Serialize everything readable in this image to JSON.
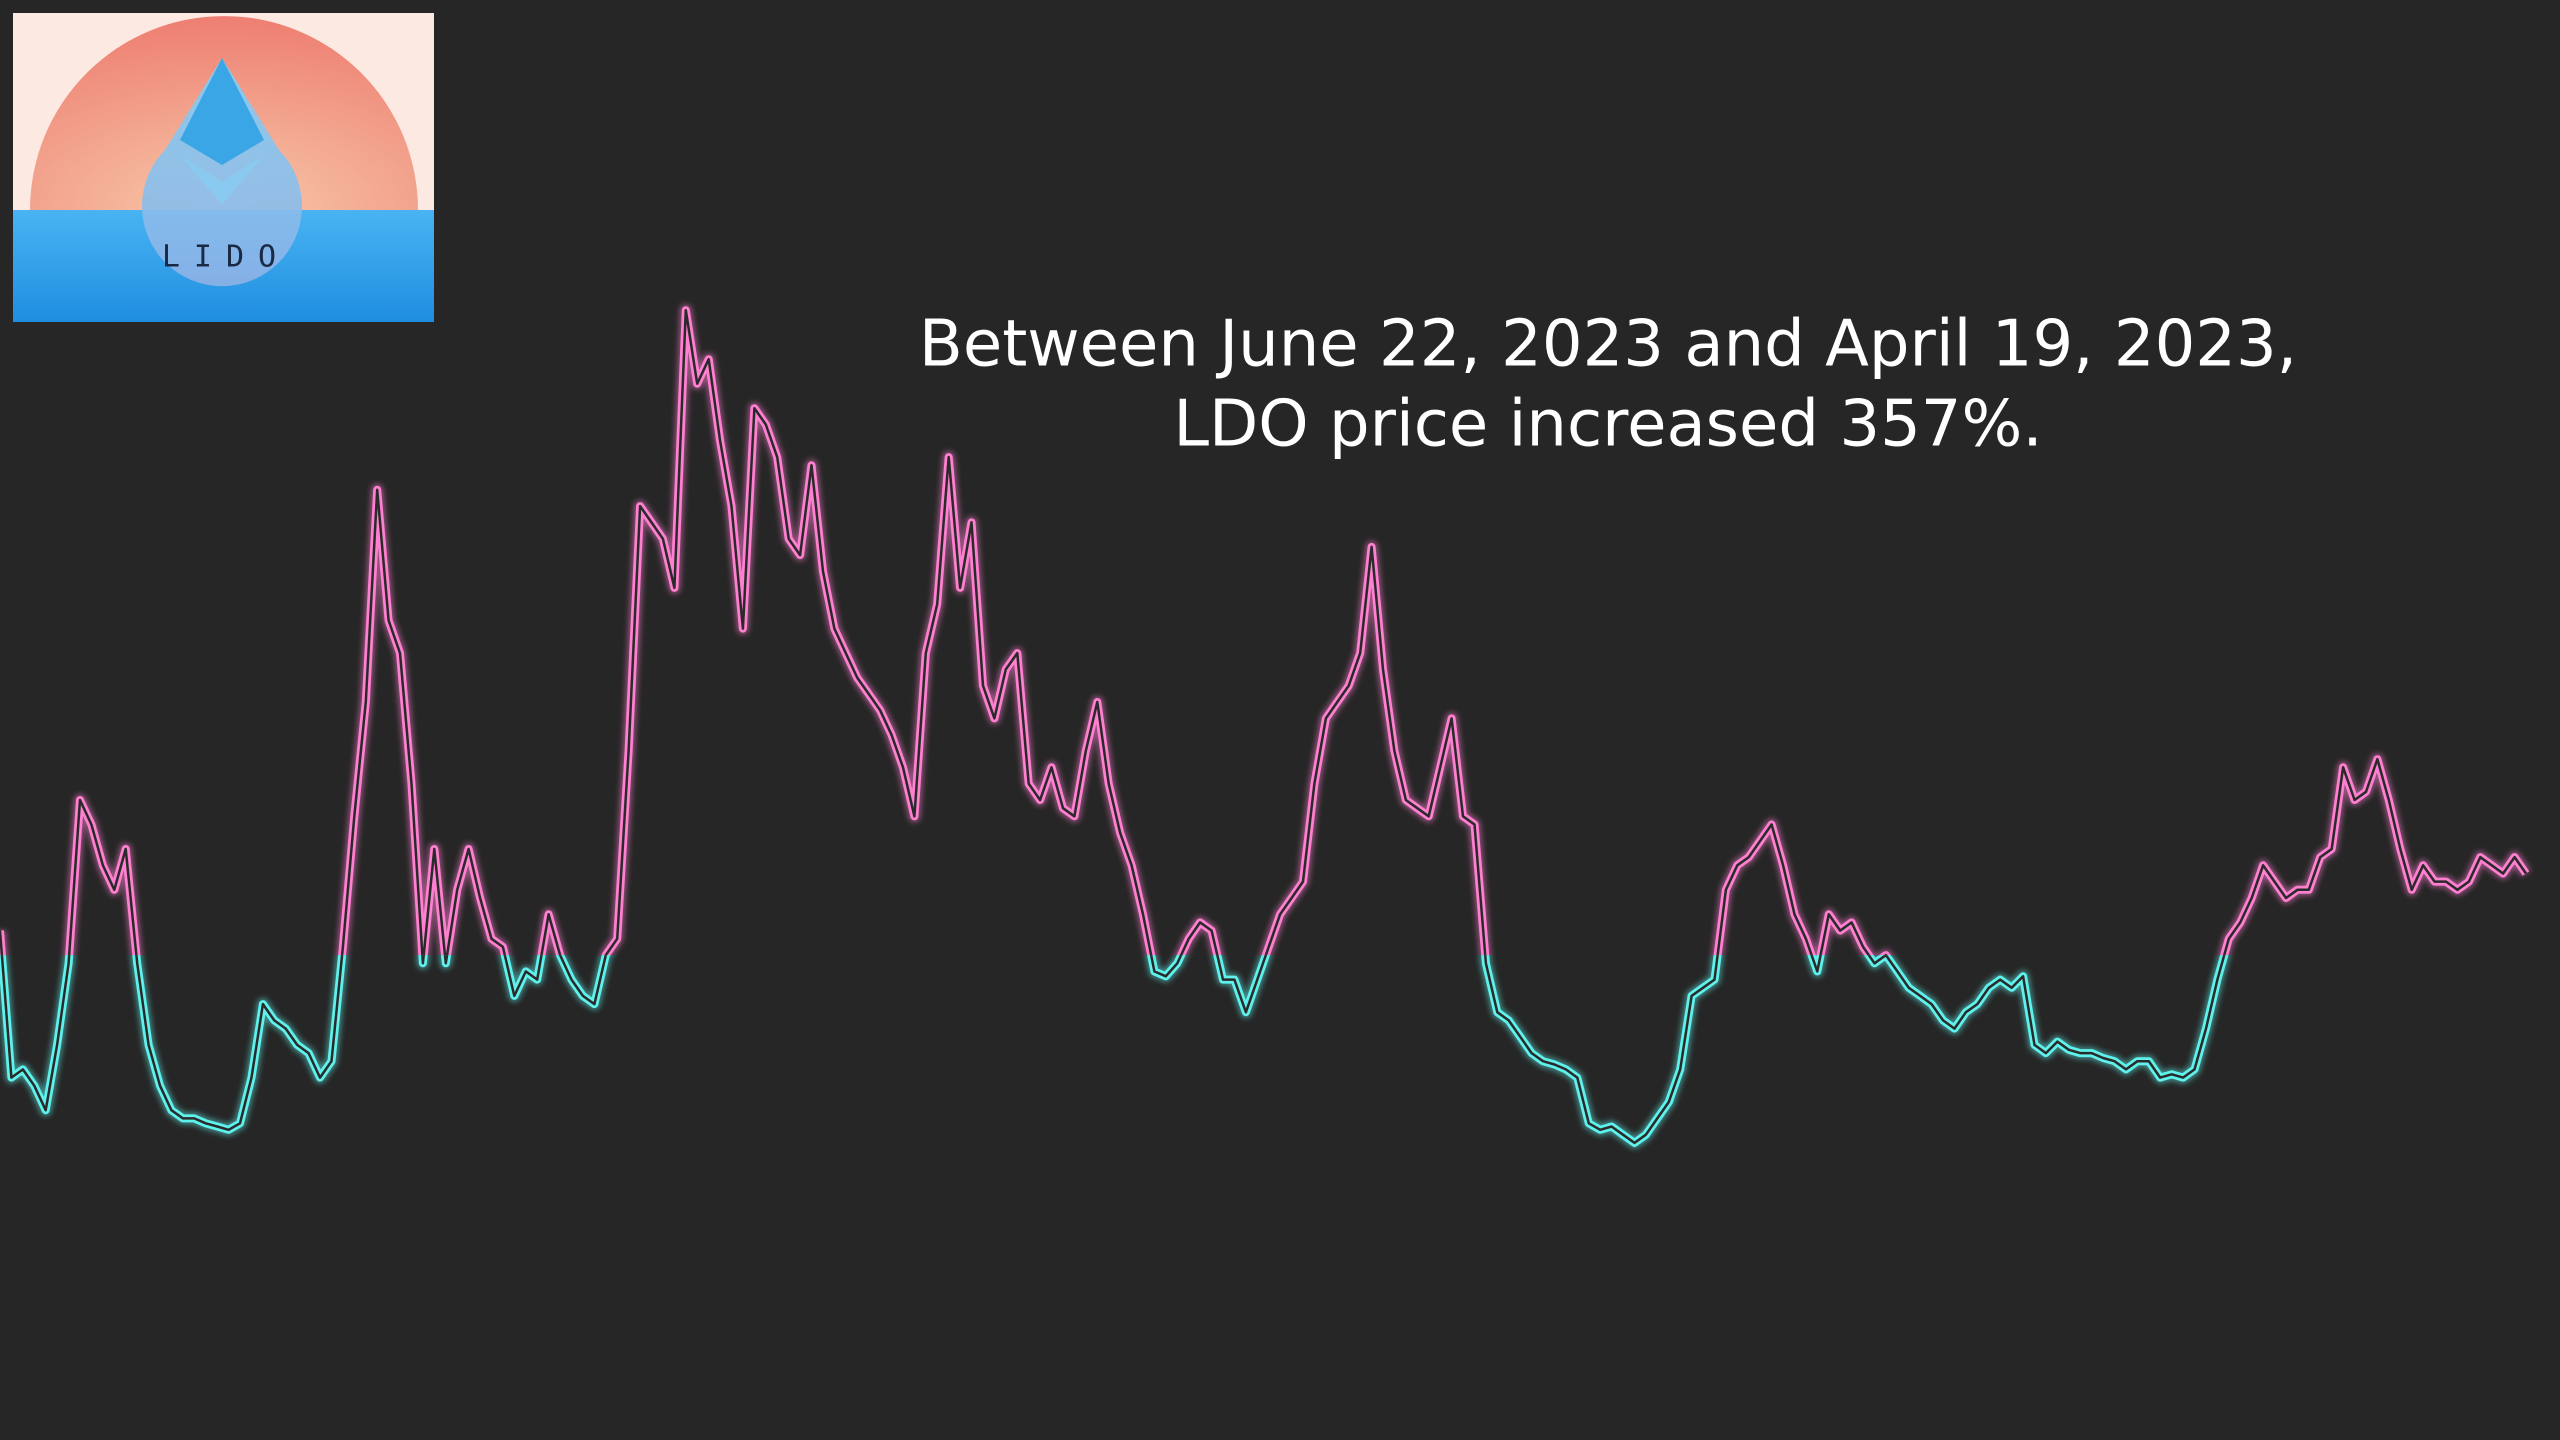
{
  "chart_data": {
    "type": "line",
    "annotation": [
      "Between June 22, 2023 and April 19, 2023,",
      "LDO price increased 357%."
    ],
    "logo": {
      "text": "LIDO"
    },
    "ylim": [
      0,
      882
    ],
    "threshold": 297,
    "colors": {
      "above": "#ff7fd0",
      "below": "#5ff2ec"
    },
    "series": [
      {
        "values": [
          312,
          222,
          227,
          217,
          202,
          242,
          292,
          392,
          377,
          352,
          337,
          362,
          292,
          242,
          217,
          202,
          197,
          197,
          194,
          192,
          190,
          194,
          222,
          267,
          257,
          252,
          242,
          237,
          222,
          232,
          302,
          382,
          452,
          582,
          502,
          482,
          402,
          292,
          362,
          292,
          337,
          362,
          332,
          307,
          302,
          272,
          287,
          282,
          322,
          297,
          282,
          272,
          267,
          297,
          307,
          422,
          572,
          562,
          552,
          522,
          692,
          647,
          662,
          612,
          572,
          497,
          632,
          622,
          602,
          552,
          542,
          597,
          532,
          497,
          482,
          467,
          457,
          447,
          432,
          412,
          382,
          482,
          512,
          602,
          522,
          562,
          462,
          442,
          472,
          482,
          402,
          392,
          412,
          387,
          382,
          422,
          452,
          402,
          372,
          352,
          322,
          287,
          284,
          292,
          307,
          317,
          312,
          282,
          282,
          262,
          282,
          302,
          322,
          332,
          342,
          402,
          442,
          452,
          462,
          482,
          547,
          472,
          422,
          392,
          387,
          382,
          412,
          442,
          382,
          377,
          292,
          262,
          257,
          247,
          237,
          232,
          230,
          227,
          222,
          194,
          190,
          192,
          187,
          182,
          187,
          197,
          207,
          227,
          272,
          277,
          282,
          337,
          352,
          357,
          367,
          377,
          352,
          322,
          307,
          287,
          322,
          312,
          317,
          302,
          292,
          297,
          287,
          277,
          272,
          267,
          257,
          252,
          262,
          267,
          277,
          282,
          277,
          284,
          242,
          237,
          244,
          239,
          237,
          237,
          234,
          232,
          227,
          232,
          232,
          222,
          224,
          222,
          227,
          252,
          282,
          307,
          317,
          332,
          352,
          342,
          332,
          337,
          337,
          357,
          362,
          412,
          392,
          397,
          417,
          392,
          362,
          337,
          352,
          342,
          342,
          337,
          342,
          357,
          352,
          347,
          357,
          347
        ]
      }
    ]
  }
}
